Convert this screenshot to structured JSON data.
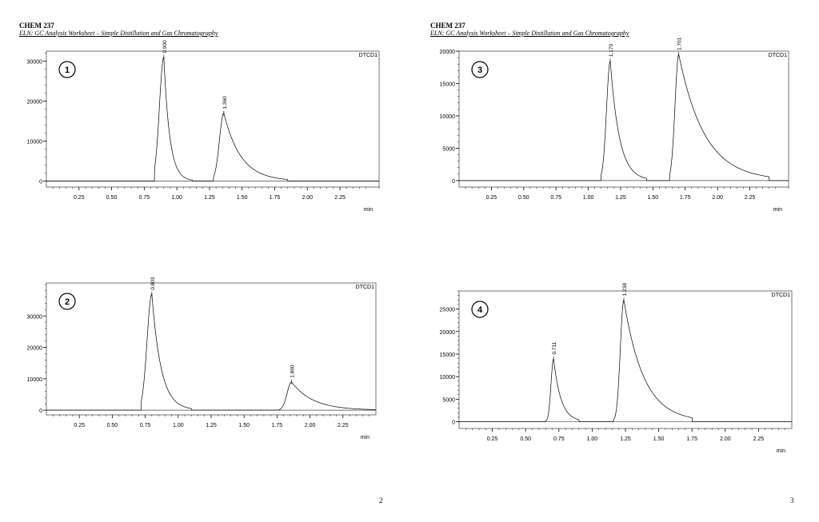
{
  "pages": [
    {
      "header": {
        "course": "CHEM 237",
        "subtitle": "ELN: GC Analysis Worksheet – Simple Distillation and Gas Chromatography"
      },
      "page_number": "2"
    },
    {
      "header": {
        "course": "CHEM 237",
        "subtitle": "ELN: GC Analysis Worksheet – Simple Distillation and Gas Chromatography"
      },
      "page_number": "3"
    }
  ],
  "colors": {
    "trace": "#000000",
    "frame": "#555555",
    "baseline": "#444444"
  },
  "chart_data": [
    {
      "type": "line",
      "badge": "1",
      "detector": "DTCD1",
      "xlabel": "min",
      "xlim": [
        0,
        2.55
      ],
      "ylim": [
        -1500,
        32500
      ],
      "xticks": [
        "0.25",
        "0.50",
        "0.75",
        "1.00",
        "1.25",
        "1.50",
        "1.75",
        "2.00",
        "2.25"
      ],
      "yticks": [
        "0",
        "10000",
        "20000",
        "30000"
      ],
      "peaks": [
        {
          "label": "0.900",
          "rt": 0.9,
          "height": 31000,
          "start": 0.83,
          "end": 1.12,
          "rise": 0.07,
          "tail": 0.045
        },
        {
          "label": "1.360",
          "rt": 1.36,
          "height": 17000,
          "start": 1.28,
          "end": 1.85,
          "rise": 0.07,
          "tail": 0.13
        }
      ]
    },
    {
      "type": "line",
      "badge": "2",
      "detector": "DTCD1",
      "xlabel": "min",
      "xlim": [
        0,
        2.5
      ],
      "ylim": [
        -1500,
        40500
      ],
      "xticks": [
        "0.25",
        "0.50",
        "0.75",
        "1.00",
        "1.25",
        "1.50",
        "1.75",
        "2.00",
        "2.25"
      ],
      "yticks": [
        "0",
        "10000",
        "20000",
        "30000"
      ],
      "peaks": [
        {
          "label": "0.803",
          "rt": 0.8,
          "height": 37000,
          "start": 0.72,
          "end": 1.1,
          "rise": 0.075,
          "tail": 0.07
        },
        {
          "label": "1.860",
          "rt": 1.86,
          "height": 9000,
          "start": 1.73,
          "end": 2.5,
          "rise": 0.07,
          "tail": 0.16
        }
      ]
    },
    {
      "type": "line",
      "badge": "3",
      "detector": "DTCD1",
      "xlabel": "min",
      "xlim": [
        0,
        2.55
      ],
      "ylim": [
        -1000,
        20000
      ],
      "xticks": [
        "0.25",
        "0.50",
        "0.75",
        "1.00",
        "1.25",
        "1.50",
        "1.75",
        "2.00",
        "2.25"
      ],
      "yticks": [
        "0",
        "5000",
        "10000",
        "15000",
        "20000"
      ],
      "peaks": [
        {
          "label": "1.170",
          "rt": 1.17,
          "height": 18500,
          "start": 1.1,
          "end": 1.45,
          "rise": 0.06,
          "tail": 0.07
        },
        {
          "label": "1.701",
          "rt": 1.7,
          "height": 19500,
          "start": 1.63,
          "end": 2.4,
          "rise": 0.06,
          "tail": 0.2
        }
      ]
    },
    {
      "type": "line",
      "badge": "4",
      "detector": "DTCD1",
      "xlabel": "min",
      "xlim": [
        0,
        2.5
      ],
      "ylim": [
        -1500,
        29000
      ],
      "xticks": [
        "0.25",
        "0.50",
        "0.75",
        "1.00",
        "1.25",
        "1.50",
        "1.75",
        "2.00",
        "2.25"
      ],
      "yticks": [
        "0",
        "5000",
        "10000",
        "15000",
        "20000",
        "25000"
      ],
      "peaks": [
        {
          "label": "0.711",
          "rt": 0.71,
          "height": 14000,
          "start": 0.65,
          "end": 0.9,
          "rise": 0.04,
          "tail": 0.055
        },
        {
          "label": "1.238",
          "rt": 1.238,
          "height": 27000,
          "start": 1.16,
          "end": 1.75,
          "rise": 0.055,
          "tail": 0.15
        }
      ]
    }
  ]
}
